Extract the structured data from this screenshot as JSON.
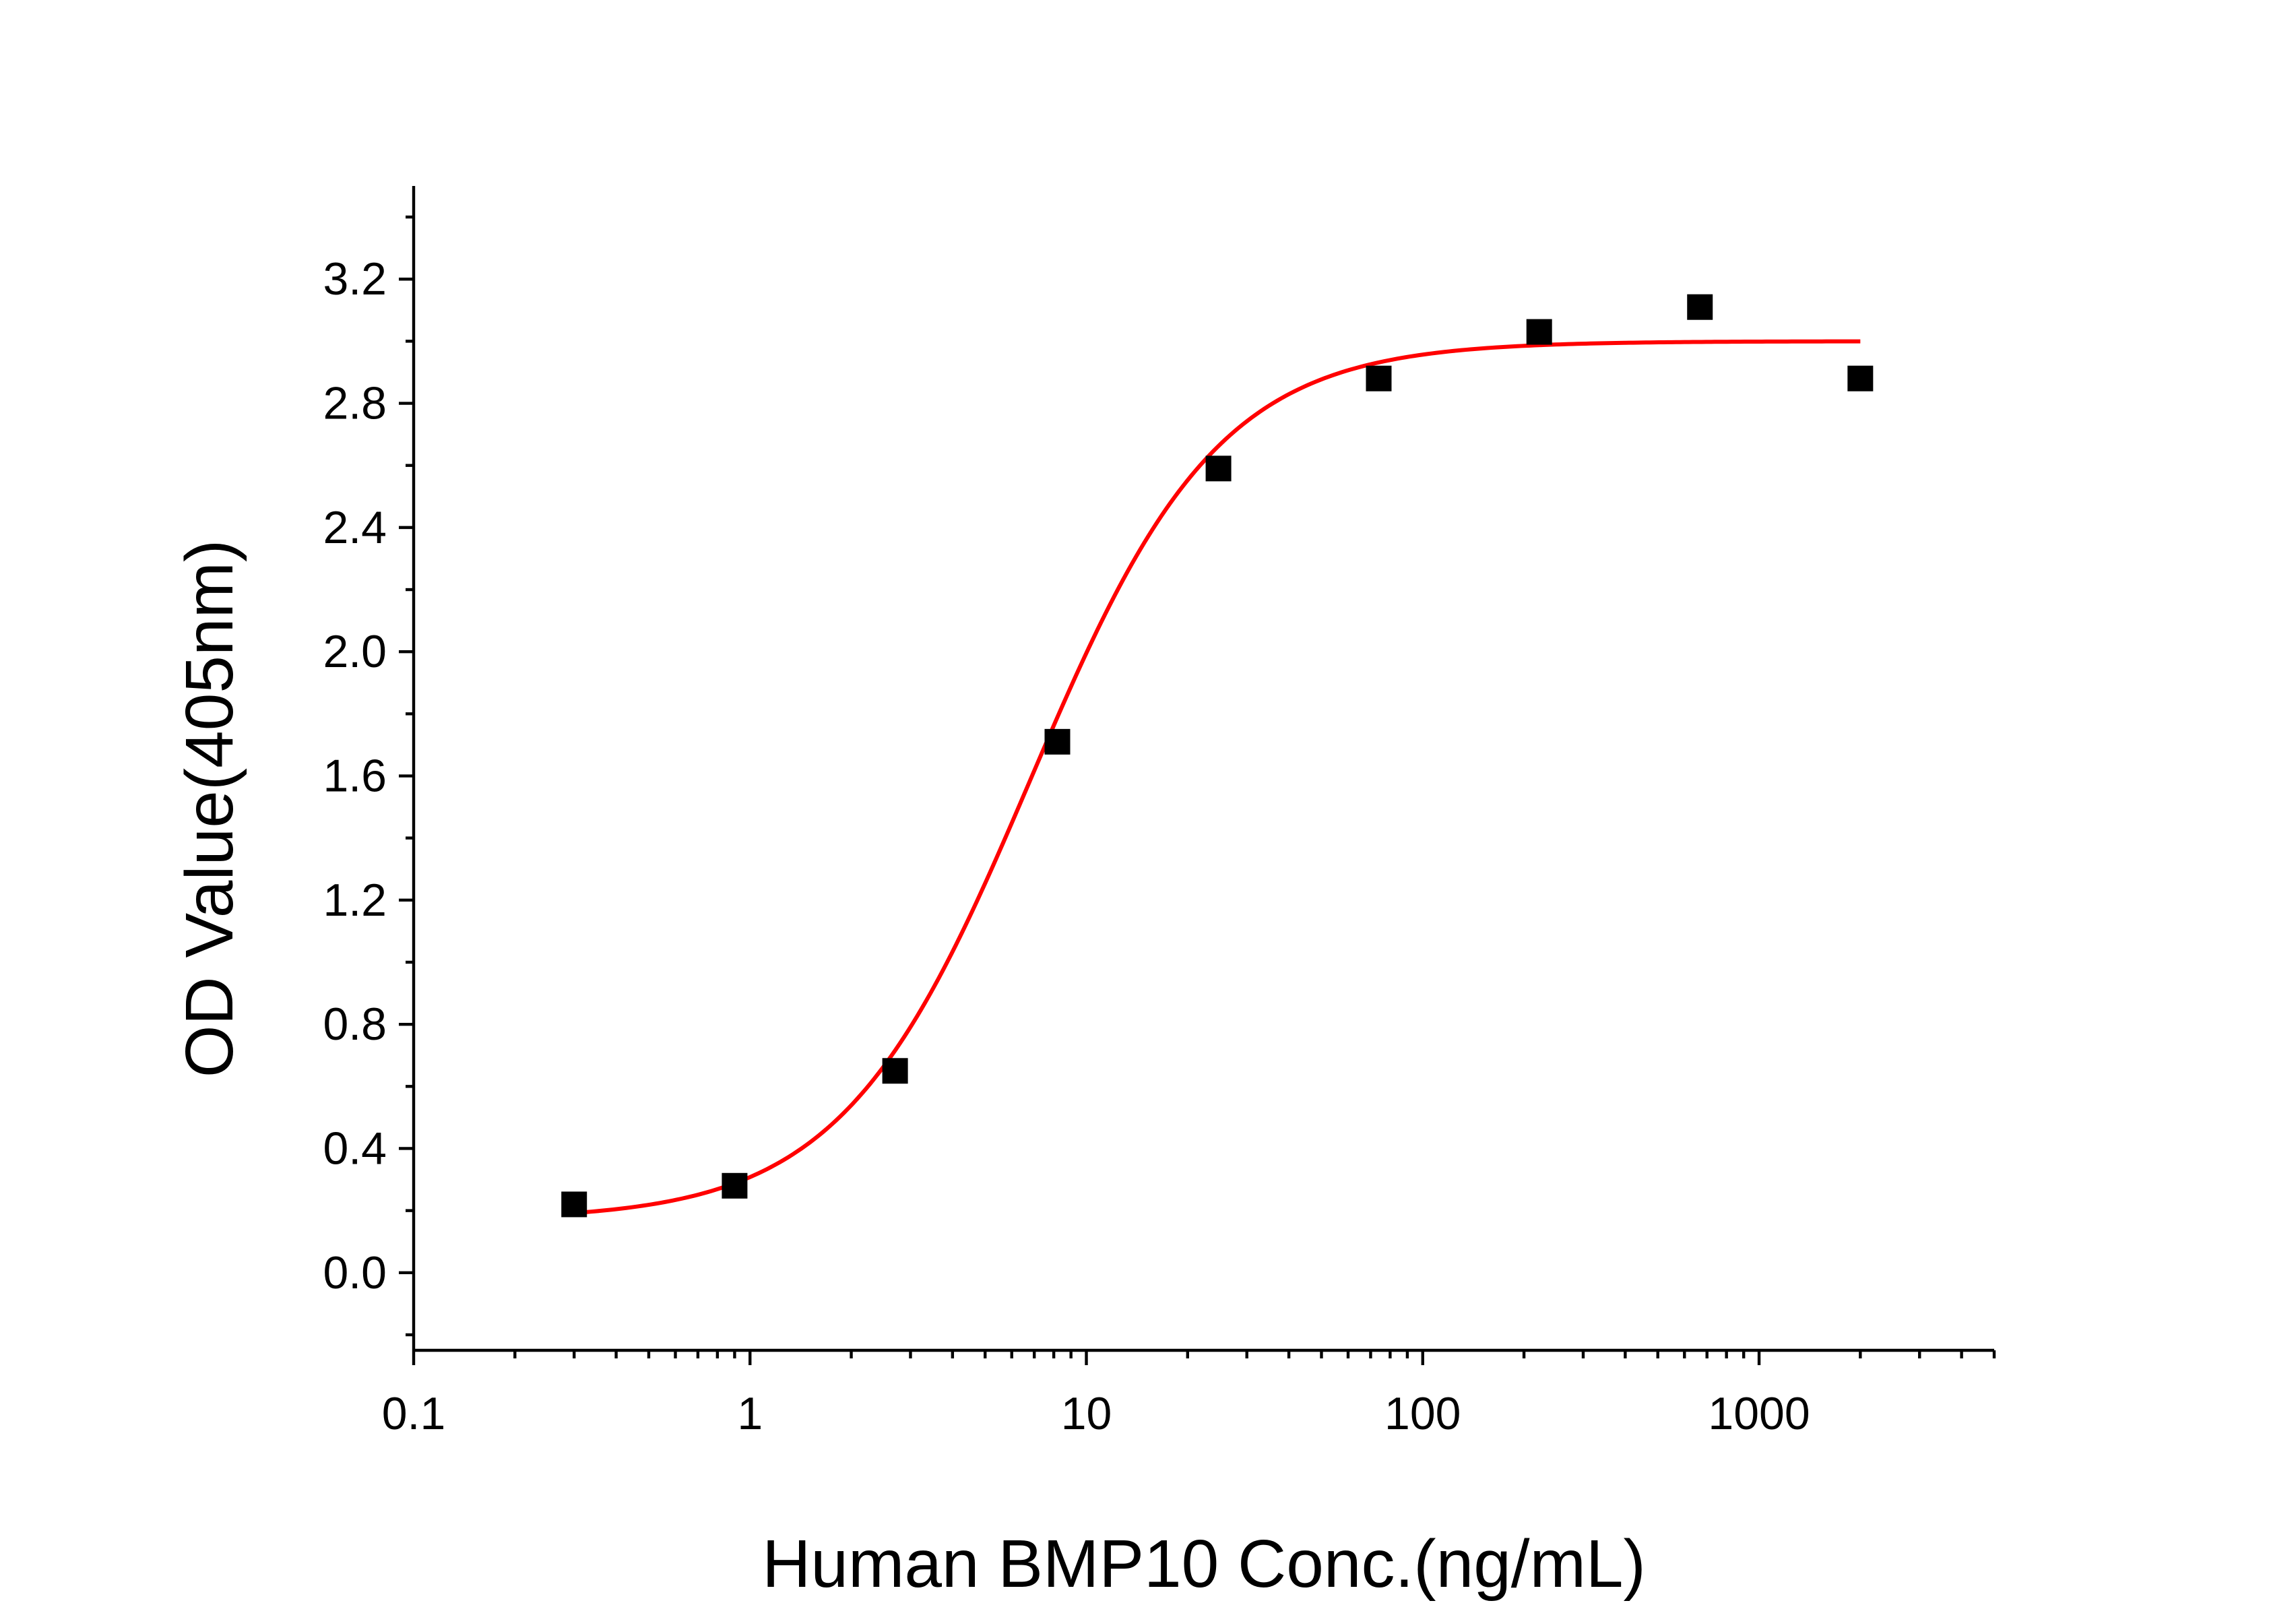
{
  "chart_data": {
    "type": "scatter",
    "title": "",
    "xlabel": "Human BMP10 Conc.(ng/mL)",
    "ylabel": "OD Value(405nm)",
    "x_scale": "log",
    "xlim": [
      0.1,
      5000
    ],
    "ylim": [
      -0.25,
      3.5
    ],
    "x_ticks": [
      0.1,
      1,
      10,
      100,
      1000
    ],
    "x_tick_labels": [
      "0.1",
      "1",
      "10",
      "100",
      "1000"
    ],
    "y_ticks": [
      0.0,
      0.4,
      0.8,
      1.2,
      1.6,
      2.0,
      2.4,
      2.8,
      3.2
    ],
    "y_tick_labels": [
      "0.0",
      "0.4",
      "0.8",
      "1.2",
      "1.6",
      "2.0",
      "2.4",
      "2.8",
      "3.2"
    ],
    "grid": false,
    "legend": "none",
    "series": [
      {
        "type": "scatter",
        "marker": "square",
        "color": "#000000",
        "x": [
          0.3,
          0.9,
          2.7,
          8.2,
          24.7,
          74,
          222,
          667,
          2000
        ],
        "y": [
          0.22,
          0.28,
          0.65,
          1.71,
          2.59,
          2.88,
          3.03,
          3.11,
          2.88
        ]
      },
      {
        "type": "fit-line",
        "color": "#ff0000",
        "x_range": [
          0.3,
          2000
        ],
        "model": "logistic",
        "params": {
          "bottom": 0.17,
          "top": 3.0,
          "ec50": 6.8,
          "hill": 1.55
        }
      }
    ]
  }
}
